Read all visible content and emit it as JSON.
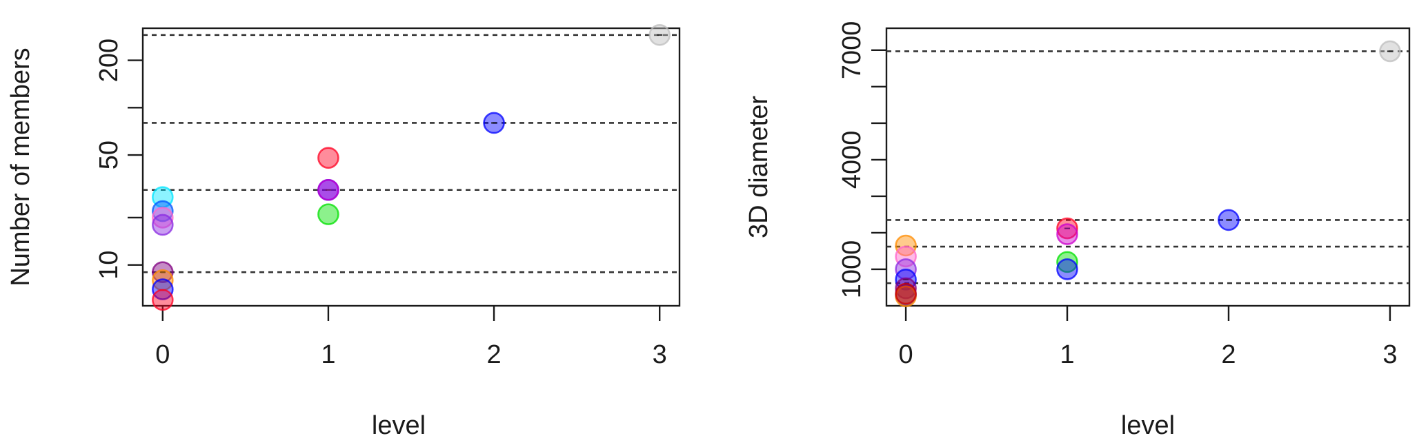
{
  "chart_data": [
    {
      "type": "scatter",
      "xlabel": "level",
      "ylabel": "Number of members",
      "y_scale": "log",
      "x_ticks": [
        0,
        1,
        2,
        3
      ],
      "y_ticks": [
        10,
        50,
        200
      ],
      "xlim": [
        -0.12,
        3.12
      ],
      "ylim": [
        5.5,
        320
      ],
      "grid": false,
      "legend": "none",
      "reference_lines": [
        9,
        30,
        80,
        290
      ],
      "points": [
        {
          "x": 0,
          "y": 27,
          "color": "#00e5ff"
        },
        {
          "x": 0,
          "y": 22,
          "color": "#0055ff"
        },
        {
          "x": 0,
          "y": 20,
          "color": "#ff66cc"
        },
        {
          "x": 0,
          "y": 18,
          "color": "#8a2be2"
        },
        {
          "x": 0,
          "y": 9,
          "color": "#800080",
          "median_tick": true
        },
        {
          "x": 0,
          "y": 8,
          "color": "#ff8c00"
        },
        {
          "x": 0,
          "y": 7,
          "color": "#0000ff"
        },
        {
          "x": 0,
          "y": 6,
          "color": "#ff0022"
        },
        {
          "x": 1,
          "y": 48,
          "color": "#ff0022"
        },
        {
          "x": 1,
          "y": 30,
          "color": "#0000ff",
          "median_tick": true
        },
        {
          "x": 1,
          "y": 30,
          "color": "#cc00cc"
        },
        {
          "x": 1,
          "y": 21,
          "color": "#00e000"
        },
        {
          "x": 2,
          "y": 80,
          "color": "#0000ff",
          "median_tick": true
        },
        {
          "x": 3,
          "y": 290,
          "color": "#bdbdbd",
          "median_tick": true
        }
      ]
    },
    {
      "type": "scatter",
      "xlabel": "level",
      "ylabel": "3D diameter",
      "y_scale": "linear",
      "x_ticks": [
        0,
        1,
        2,
        3
      ],
      "y_ticks": [
        1000,
        4000,
        7000
      ],
      "y_minor_ticks": [
        2000,
        3000,
        5000,
        6000
      ],
      "xlim": [
        -0.12,
        3.12
      ],
      "ylim": [
        0,
        7600
      ],
      "grid": false,
      "legend": "none",
      "reference_lines": [
        620,
        1620,
        2350,
        6970
      ],
      "points": [
        {
          "x": 0,
          "y": 1650,
          "color": "#ff8c00"
        },
        {
          "x": 0,
          "y": 1350,
          "color": "#ff66cc"
        },
        {
          "x": 0,
          "y": 1000,
          "color": "#8a2be2"
        },
        {
          "x": 0,
          "y": 720,
          "color": "#0000ff",
          "median_tick": true
        },
        {
          "x": 0,
          "y": 480,
          "color": "#800080"
        },
        {
          "x": 0,
          "y": 300,
          "color": "#0000ff"
        },
        {
          "x": 0,
          "y": 260,
          "color": "#ff8c00"
        },
        {
          "x": 0,
          "y": 330,
          "color": "#cc0000"
        },
        {
          "x": 1,
          "y": 2120,
          "color": "#ff0022",
          "median_tick": true
        },
        {
          "x": 1,
          "y": 1960,
          "color": "#cc00cc"
        },
        {
          "x": 1,
          "y": 1200,
          "color": "#00e000"
        },
        {
          "x": 1,
          "y": 1000,
          "color": "#0000ff"
        },
        {
          "x": 2,
          "y": 2350,
          "color": "#0000ff",
          "median_tick": true
        },
        {
          "x": 3,
          "y": 6970,
          "color": "#bdbdbd",
          "median_tick": true
        }
      ]
    }
  ]
}
